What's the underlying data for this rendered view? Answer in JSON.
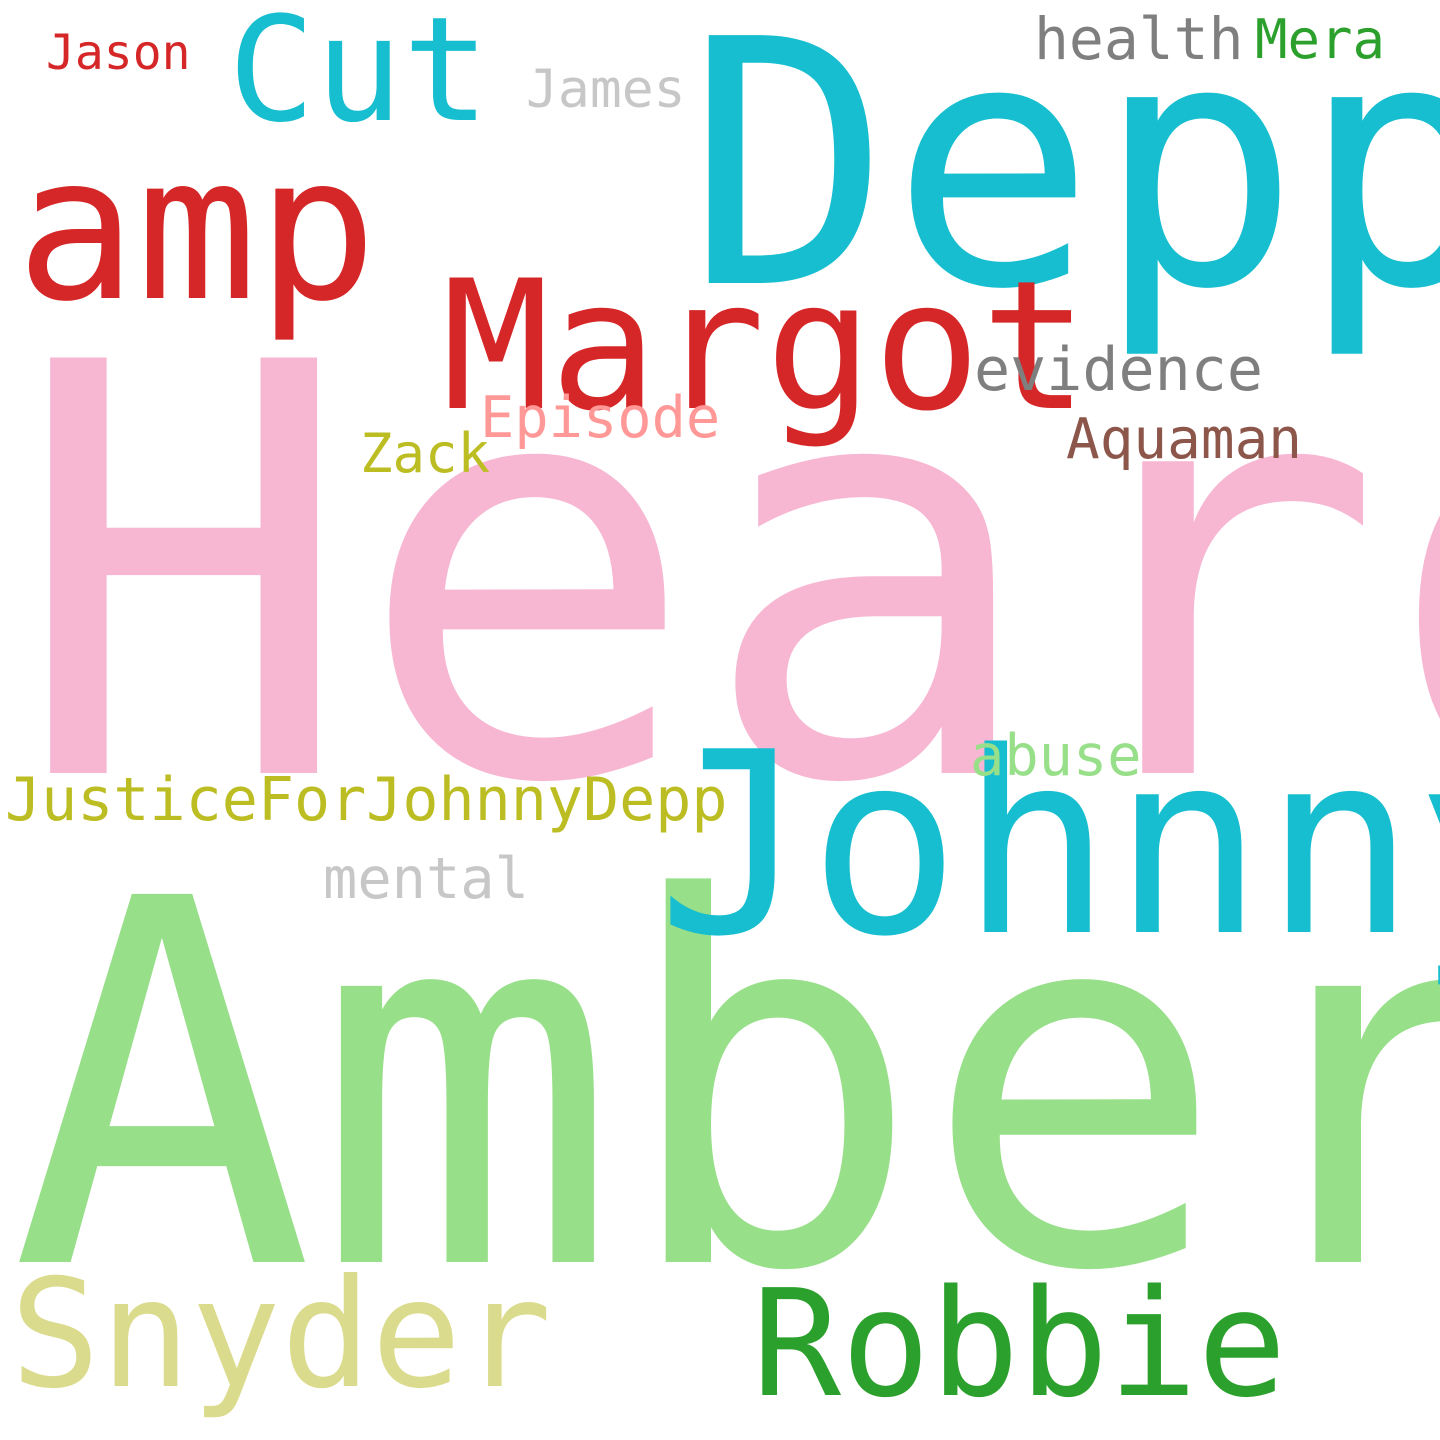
{
  "cloud": {
    "words": {
      "heard": {
        "text": "Heard",
        "color": "#f7b6d2"
      },
      "amber": {
        "text": "Amber",
        "color": "#98df8a"
      },
      "depp": {
        "text": "Depp",
        "color": "#17becf"
      },
      "johnny": {
        "text": "Johnny",
        "color": "#17becf"
      },
      "margot": {
        "text": "Margot",
        "color": "#d62728"
      },
      "amp": {
        "text": "amp",
        "color": "#d62728"
      },
      "cut": {
        "text": "Cut",
        "color": "#17becf"
      },
      "snyder": {
        "text": "Snyder",
        "color": "#dbdb8d"
      },
      "robbie": {
        "text": "Robbie",
        "color": "#2ca02c"
      },
      "justice": {
        "text": "JusticeForJohnnyDepp",
        "color": "#bcbd22"
      },
      "evidence": {
        "text": "evidence",
        "color": "#7f7f7f"
      },
      "health": {
        "text": "health",
        "color": "#7f7f7f"
      },
      "episode": {
        "text": "Episode",
        "color": "#ff9896"
      },
      "aquaman": {
        "text": "Aquaman",
        "color": "#8c564b"
      },
      "abuse": {
        "text": "abuse",
        "color": "#98df8a"
      },
      "mental": {
        "text": "mental",
        "color": "#c7c7c7"
      },
      "james": {
        "text": "James",
        "color": "#c7c7c7"
      },
      "zack": {
        "text": "Zack",
        "color": "#bcbd22"
      },
      "mera": {
        "text": "Mera",
        "color": "#2ca02c"
      },
      "jason": {
        "text": "Jason",
        "color": "#d62728"
      }
    }
  }
}
